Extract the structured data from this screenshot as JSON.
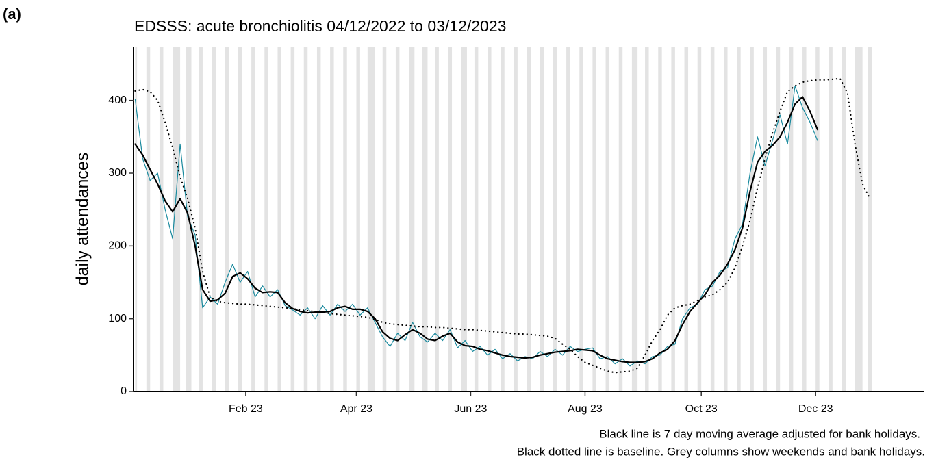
{
  "chart_data": {
    "type": "line",
    "panel_label": "(a)",
    "title": "EDSSS: acute bronchiolitis 04/12/2022 to 03/12/2023",
    "y_label": "daily attendances",
    "notes": [
      "Black line is 7 day moving average adjusted for bank holidays.",
      "Black dotted line is baseline. Grey columns show weekends and bank holidays."
    ],
    "xlim": [
      -0.5,
      421
    ],
    "ylim": [
      0,
      474
    ],
    "xticks": [
      {
        "value": 59,
        "label": "Feb 23"
      },
      {
        "value": 118,
        "label": "Apr 23"
      },
      {
        "value": 179,
        "label": "Jun 23"
      },
      {
        "value": 240,
        "label": "Aug 23"
      },
      {
        "value": 302,
        "label": "Oct 23"
      },
      {
        "value": 363,
        "label": "Dec 23"
      }
    ],
    "yticks": [
      0,
      100,
      200,
      300,
      400
    ],
    "grid": false,
    "shaded_color": "#e3e3e3",
    "shaded_columns": [
      [
        0,
        1
      ],
      [
        6,
        8
      ],
      [
        13,
        15
      ],
      [
        20,
        24
      ],
      [
        27,
        30
      ],
      [
        34,
        36
      ],
      [
        41,
        43
      ],
      [
        48,
        50
      ],
      [
        55,
        57
      ],
      [
        62,
        64
      ],
      [
        69,
        71
      ],
      [
        76,
        78
      ],
      [
        83,
        85
      ],
      [
        90,
        92
      ],
      [
        97,
        99
      ],
      [
        104,
        106
      ],
      [
        111,
        113
      ],
      [
        118,
        120
      ],
      [
        124,
        128
      ],
      [
        132,
        134
      ],
      [
        139,
        141
      ],
      [
        146,
        149
      ],
      [
        153,
        156
      ],
      [
        160,
        162
      ],
      [
        167,
        169
      ],
      [
        174,
        177
      ],
      [
        181,
        183
      ],
      [
        188,
        190
      ],
      [
        195,
        197
      ],
      [
        202,
        204
      ],
      [
        209,
        211
      ],
      [
        216,
        218
      ],
      [
        223,
        225
      ],
      [
        230,
        232
      ],
      [
        237,
        239
      ],
      [
        244,
        246
      ],
      [
        251,
        253
      ],
      [
        258,
        260
      ],
      [
        265,
        268
      ],
      [
        272,
        274
      ],
      [
        279,
        281
      ],
      [
        286,
        288
      ],
      [
        293,
        295
      ],
      [
        300,
        302
      ],
      [
        307,
        309
      ],
      [
        314,
        316
      ],
      [
        321,
        323
      ],
      [
        328,
        330
      ],
      [
        335,
        337
      ],
      [
        342,
        344
      ],
      [
        349,
        351
      ],
      [
        356,
        358
      ],
      [
        363,
        365
      ],
      [
        370,
        372
      ],
      [
        377,
        379
      ],
      [
        384,
        388
      ],
      [
        391,
        393
      ]
    ],
    "x": [
      0,
      4,
      8,
      12,
      16,
      20,
      24,
      28,
      32,
      36,
      40,
      44,
      48,
      52,
      56,
      60,
      64,
      68,
      72,
      76,
      80,
      84,
      88,
      92,
      96,
      100,
      104,
      108,
      112,
      116,
      120,
      124,
      128,
      132,
      136,
      140,
      144,
      148,
      152,
      156,
      160,
      164,
      168,
      172,
      176,
      180,
      184,
      188,
      192,
      196,
      200,
      204,
      208,
      212,
      216,
      220,
      224,
      228,
      232,
      236,
      240,
      244,
      248,
      252,
      256,
      260,
      264,
      268,
      272,
      276,
      280,
      284,
      288,
      292,
      296,
      300,
      304,
      308,
      312,
      316,
      320,
      324,
      328,
      332,
      336,
      340,
      344,
      348,
      352,
      356,
      360,
      364,
      368,
      372,
      376,
      380,
      384,
      388,
      392
    ],
    "series": [
      {
        "color": "#1a8a9e",
        "width": 1.2,
        "dash": "solid",
        "values": [
          402,
          320,
          290,
          300,
          250,
          210,
          340,
          240,
          215,
          115,
          130,
          120,
          150,
          175,
          150,
          165,
          130,
          145,
          130,
          140,
          118,
          112,
          105,
          115,
          100,
          118,
          105,
          120,
          110,
          120,
          105,
          115,
          95,
          75,
          62,
          80,
          70,
          95,
          75,
          68,
          80,
          70,
          85,
          60,
          70,
          55,
          62,
          50,
          58,
          45,
          52,
          42,
          48,
          45,
          55,
          48,
          58,
          50,
          62,
          55,
          58,
          60,
          45,
          48,
          38,
          45,
          35,
          42,
          38,
          48,
          50,
          62,
          65,
          100,
          115,
          120,
          140,
          145,
          165,
          170,
          210,
          230,
          300,
          350,
          310,
          345,
          380,
          340,
          420,
          390,
          370,
          345,
          null,
          null,
          null,
          null,
          null,
          null,
          null
        ]
      },
      {
        "color": "#000000",
        "width": 2.2,
        "dash": "solid",
        "values": [
          340,
          325,
          305,
          285,
          262,
          247,
          265,
          245,
          200,
          140,
          124,
          126,
          135,
          158,
          163,
          155,
          142,
          136,
          137,
          136,
          122,
          114,
          110,
          108,
          109,
          109,
          110,
          115,
          117,
          113,
          113,
          110,
          100,
          82,
          73,
          70,
          78,
          85,
          80,
          72,
          70,
          76,
          80,
          68,
          63,
          62,
          58,
          56,
          53,
          50,
          48,
          47,
          46,
          47,
          50,
          52,
          54,
          55,
          56,
          58,
          57,
          56,
          50,
          45,
          43,
          41,
          40,
          40,
          41,
          45,
          53,
          58,
          70,
          92,
          110,
          122,
          133,
          150,
          160,
          175,
          195,
          225,
          275,
          315,
          330,
          338,
          350,
          370,
          395,
          405,
          385,
          360,
          null,
          null,
          null,
          null,
          null,
          null,
          null
        ]
      },
      {
        "color": "#000000",
        "width": 2.2,
        "dash": "dotted",
        "values": [
          413,
          415,
          412,
          400,
          370,
          335,
          295,
          265,
          225,
          165,
          130,
          124,
          122,
          121,
          120,
          120,
          119,
          118,
          117,
          116,
          115,
          114,
          112,
          111,
          110,
          109,
          107,
          106,
          105,
          104,
          103,
          102,
          99,
          95,
          93,
          92,
          91,
          90,
          89,
          89,
          88,
          88,
          87,
          86,
          85,
          85,
          84,
          83,
          82,
          81,
          80,
          79,
          79,
          78,
          77,
          76,
          73,
          65,
          58,
          48,
          40,
          36,
          32,
          28,
          26,
          27,
          28,
          32,
          50,
          70,
          85,
          105,
          115,
          118,
          120,
          125,
          130,
          133,
          140,
          150,
          170,
          200,
          235,
          280,
          320,
          355,
          385,
          412,
          420,
          425,
          427,
          428,
          428,
          429,
          430,
          410,
          340,
          285,
          265
        ]
      }
    ]
  }
}
